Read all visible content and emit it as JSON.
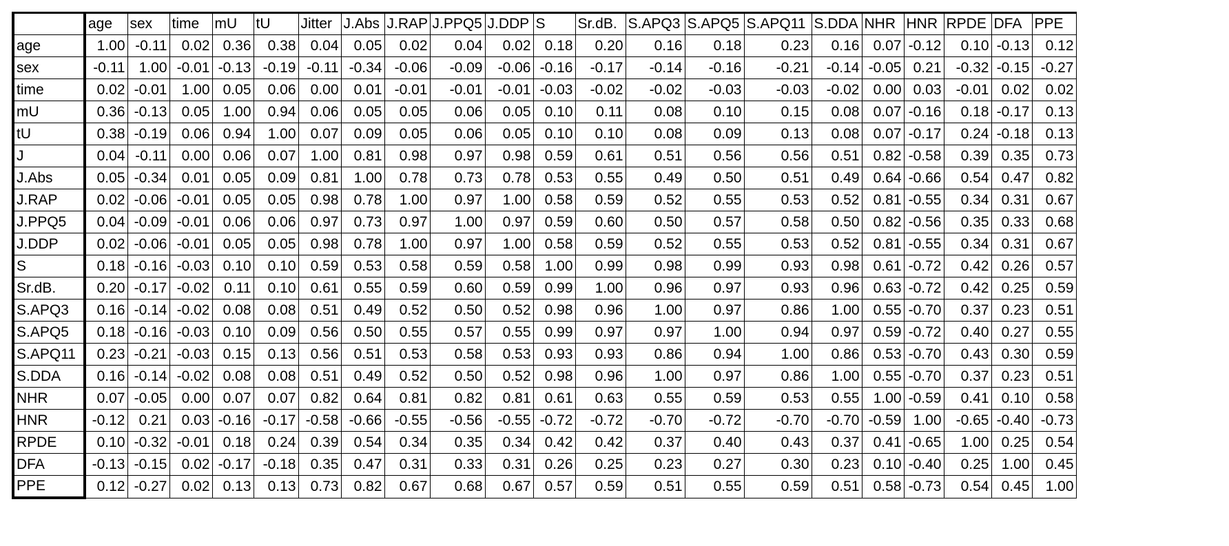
{
  "table": {
    "columns": [
      "age",
      "sex",
      "time",
      "mU",
      "tU",
      "Jitter",
      "J.Abs",
      "J.RAP",
      "J.PPQ5",
      "J.DDP",
      "S",
      "Sr.dB.",
      "S.APQ3",
      "S.APQ5",
      "S.APQ11",
      "S.DDA",
      "NHR",
      "HNR",
      "RPDE",
      "DFA",
      "PPE"
    ],
    "rows": [
      {
        "label": "age",
        "values": [
          "1.00",
          "-0.11",
          "0.02",
          "0.36",
          "0.38",
          "0.04",
          "0.05",
          "0.02",
          "0.04",
          "0.02",
          "0.18",
          "0.20",
          "0.16",
          "0.18",
          "0.23",
          "0.16",
          "0.07",
          "-0.12",
          "0.10",
          "-0.13",
          "0.12"
        ]
      },
      {
        "label": "sex",
        "values": [
          "-0.11",
          "1.00",
          "-0.01",
          "-0.13",
          "-0.19",
          "-0.11",
          "-0.34",
          "-0.06",
          "-0.09",
          "-0.06",
          "-0.16",
          "-0.17",
          "-0.14",
          "-0.16",
          "-0.21",
          "-0.14",
          "-0.05",
          "0.21",
          "-0.32",
          "-0.15",
          "-0.27"
        ]
      },
      {
        "label": "time",
        "values": [
          "0.02",
          "-0.01",
          "1.00",
          "0.05",
          "0.06",
          "0.00",
          "0.01",
          "-0.01",
          "-0.01",
          "-0.01",
          "-0.03",
          "-0.02",
          "-0.02",
          "-0.03",
          "-0.03",
          "-0.02",
          "0.00",
          "0.03",
          "-0.01",
          "0.02",
          "0.02"
        ]
      },
      {
        "label": "mU",
        "values": [
          "0.36",
          "-0.13",
          "0.05",
          "1.00",
          "0.94",
          "0.06",
          "0.05",
          "0.05",
          "0.06",
          "0.05",
          "0.10",
          "0.11",
          "0.08",
          "0.10",
          "0.15",
          "0.08",
          "0.07",
          "-0.16",
          "0.18",
          "-0.17",
          "0.13"
        ]
      },
      {
        "label": "tU",
        "values": [
          "0.38",
          "-0.19",
          "0.06",
          "0.94",
          "1.00",
          "0.07",
          "0.09",
          "0.05",
          "0.06",
          "0.05",
          "0.10",
          "0.10",
          "0.08",
          "0.09",
          "0.13",
          "0.08",
          "0.07",
          "-0.17",
          "0.24",
          "-0.18",
          "0.13"
        ]
      },
      {
        "label": "J",
        "values": [
          "0.04",
          "-0.11",
          "0.00",
          "0.06",
          "0.07",
          "1.00",
          "0.81",
          "0.98",
          "0.97",
          "0.98",
          "0.59",
          "0.61",
          "0.51",
          "0.56",
          "0.56",
          "0.51",
          "0.82",
          "-0.58",
          "0.39",
          "0.35",
          "0.73"
        ]
      },
      {
        "label": "J.Abs",
        "values": [
          "0.05",
          "-0.34",
          "0.01",
          "0.05",
          "0.09",
          "0.81",
          "1.00",
          "0.78",
          "0.73",
          "0.78",
          "0.53",
          "0.55",
          "0.49",
          "0.50",
          "0.51",
          "0.49",
          "0.64",
          "-0.66",
          "0.54",
          "0.47",
          "0.82"
        ]
      },
      {
        "label": "J.RAP",
        "values": [
          "0.02",
          "-0.06",
          "-0.01",
          "0.05",
          "0.05",
          "0.98",
          "0.78",
          "1.00",
          "0.97",
          "1.00",
          "0.58",
          "0.59",
          "0.52",
          "0.55",
          "0.53",
          "0.52",
          "0.81",
          "-0.55",
          "0.34",
          "0.31",
          "0.67"
        ]
      },
      {
        "label": "J.PPQ5",
        "values": [
          "0.04",
          "-0.09",
          "-0.01",
          "0.06",
          "0.06",
          "0.97",
          "0.73",
          "0.97",
          "1.00",
          "0.97",
          "0.59",
          "0.60",
          "0.50",
          "0.57",
          "0.58",
          "0.50",
          "0.82",
          "-0.56",
          "0.35",
          "0.33",
          "0.68"
        ]
      },
      {
        "label": "J.DDP",
        "values": [
          "0.02",
          "-0.06",
          "-0.01",
          "0.05",
          "0.05",
          "0.98",
          "0.78",
          "1.00",
          "0.97",
          "1.00",
          "0.58",
          "0.59",
          "0.52",
          "0.55",
          "0.53",
          "0.52",
          "0.81",
          "-0.55",
          "0.34",
          "0.31",
          "0.67"
        ]
      },
      {
        "label": "S",
        "values": [
          "0.18",
          "-0.16",
          "-0.03",
          "0.10",
          "0.10",
          "0.59",
          "0.53",
          "0.58",
          "0.59",
          "0.58",
          "1.00",
          "0.99",
          "0.98",
          "0.99",
          "0.93",
          "0.98",
          "0.61",
          "-0.72",
          "0.42",
          "0.26",
          "0.57"
        ]
      },
      {
        "label": "Sr.dB.",
        "values": [
          "0.20",
          "-0.17",
          "-0.02",
          "0.11",
          "0.10",
          "0.61",
          "0.55",
          "0.59",
          "0.60",
          "0.59",
          "0.99",
          "1.00",
          "0.96",
          "0.97",
          "0.93",
          "0.96",
          "0.63",
          "-0.72",
          "0.42",
          "0.25",
          "0.59"
        ]
      },
      {
        "label": "S.APQ3",
        "values": [
          "0.16",
          "-0.14",
          "-0.02",
          "0.08",
          "0.08",
          "0.51",
          "0.49",
          "0.52",
          "0.50",
          "0.52",
          "0.98",
          "0.96",
          "1.00",
          "0.97",
          "0.86",
          "1.00",
          "0.55",
          "-0.70",
          "0.37",
          "0.23",
          "0.51"
        ]
      },
      {
        "label": "S.APQ5",
        "values": [
          "0.18",
          "-0.16",
          "-0.03",
          "0.10",
          "0.09",
          "0.56",
          "0.50",
          "0.55",
          "0.57",
          "0.55",
          "0.99",
          "0.97",
          "0.97",
          "1.00",
          "0.94",
          "0.97",
          "0.59",
          "-0.72",
          "0.40",
          "0.27",
          "0.55"
        ]
      },
      {
        "label": "S.APQ11",
        "values": [
          "0.23",
          "-0.21",
          "-0.03",
          "0.15",
          "0.13",
          "0.56",
          "0.51",
          "0.53",
          "0.58",
          "0.53",
          "0.93",
          "0.93",
          "0.86",
          "0.94",
          "1.00",
          "0.86",
          "0.53",
          "-0.70",
          "0.43",
          "0.30",
          "0.59"
        ]
      },
      {
        "label": "S.DDA",
        "values": [
          "0.16",
          "-0.14",
          "-0.02",
          "0.08",
          "0.08",
          "0.51",
          "0.49",
          "0.52",
          "0.50",
          "0.52",
          "0.98",
          "0.96",
          "1.00",
          "0.97",
          "0.86",
          "1.00",
          "0.55",
          "-0.70",
          "0.37",
          "0.23",
          "0.51"
        ]
      },
      {
        "label": "NHR",
        "values": [
          "0.07",
          "-0.05",
          "0.00",
          "0.07",
          "0.07",
          "0.82",
          "0.64",
          "0.81",
          "0.82",
          "0.81",
          "0.61",
          "0.63",
          "0.55",
          "0.59",
          "0.53",
          "0.55",
          "1.00",
          "-0.59",
          "0.41",
          "0.10",
          "0.58"
        ]
      },
      {
        "label": "HNR",
        "values": [
          "-0.12",
          "0.21",
          "0.03",
          "-0.16",
          "-0.17",
          "-0.58",
          "-0.66",
          "-0.55",
          "-0.56",
          "-0.55",
          "-0.72",
          "-0.72",
          "-0.70",
          "-0.72",
          "-0.70",
          "-0.70",
          "-0.59",
          "1.00",
          "-0.65",
          "-0.40",
          "-0.73"
        ]
      },
      {
        "label": "RPDE",
        "values": [
          "0.10",
          "-0.32",
          "-0.01",
          "0.18",
          "0.24",
          "0.39",
          "0.54",
          "0.34",
          "0.35",
          "0.34",
          "0.42",
          "0.42",
          "0.37",
          "0.40",
          "0.43",
          "0.37",
          "0.41",
          "-0.65",
          "1.00",
          "0.25",
          "0.54"
        ]
      },
      {
        "label": "DFA",
        "values": [
          "-0.13",
          "-0.15",
          "0.02",
          "-0.17",
          "-0.18",
          "0.35",
          "0.47",
          "0.31",
          "0.33",
          "0.31",
          "0.26",
          "0.25",
          "0.23",
          "0.27",
          "0.30",
          "0.23",
          "0.10",
          "-0.40",
          "0.25",
          "1.00",
          "0.45"
        ]
      },
      {
        "label": "PPE",
        "values": [
          "0.12",
          "-0.27",
          "0.02",
          "0.13",
          "0.13",
          "0.73",
          "0.82",
          "0.67",
          "0.68",
          "0.67",
          "0.57",
          "0.59",
          "0.51",
          "0.55",
          "0.59",
          "0.51",
          "0.58",
          "-0.73",
          "0.54",
          "0.45",
          "1.00"
        ]
      }
    ]
  }
}
